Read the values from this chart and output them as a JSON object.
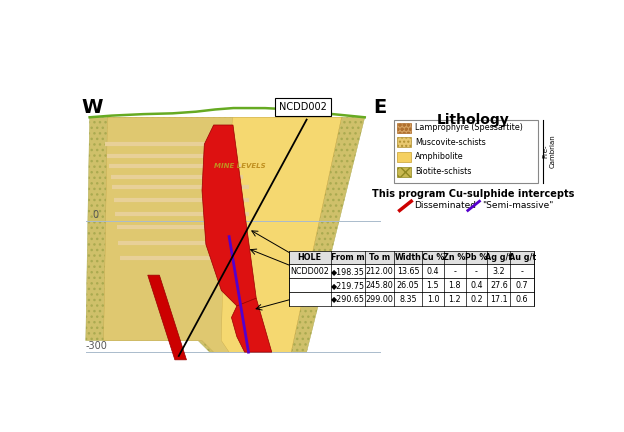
{
  "background_color": "#ffffff",
  "W_label": "W",
  "E_label": "E",
  "hole_label": "NCDD002",
  "mine_levels_label": "MINE LEVELS",
  "lithology_title": "Lithology",
  "pre_cambrian_label": "Pre-\nCambrian",
  "intercepts_title": "This program Cu-sulphide intercepts",
  "disseminated_color": "#cc0000",
  "semi_massive_color": "#5500cc",
  "disseminated_label": "Disseminated",
  "semi_massive_label": "\"Semi-massive\"",
  "table_headers": [
    "HOLE",
    "From m",
    "To m",
    "Width",
    "Cu %",
    "Zn %",
    "Pb %",
    "Ag g/t",
    "Au g/t"
  ],
  "table_data": [
    [
      "NCDD002",
      "◆198.35",
      "212.00",
      "13.65",
      "0.4",
      "-",
      "-",
      "3.2",
      "-"
    ],
    [
      "",
      "◆219.75",
      "245.80",
      "26.05",
      "1.5",
      "1.8",
      "0.4",
      "27.6",
      "0.7"
    ],
    [
      "",
      "◆290.65",
      "299.00",
      "8.35",
      "1.0",
      "1.2",
      "0.2",
      "17.1",
      "0.6"
    ]
  ],
  "lith_items": [
    {
      "label": "Lamprophyre (Spessartite)",
      "color": "#d4a060",
      "hatch": "oooo",
      "ec": "#b07030"
    },
    {
      "label": "Muscovite-schists",
      "color": "#e8c870",
      "hatch": "....",
      "ec": "#b09030"
    },
    {
      "label": "Amphibolite",
      "color": "#f5d060",
      "hatch": "",
      "ec": "#c8a030"
    },
    {
      "label": "Biotite-schists",
      "color": "#c8b850",
      "hatch": "xxx",
      "ec": "#908820"
    }
  ]
}
